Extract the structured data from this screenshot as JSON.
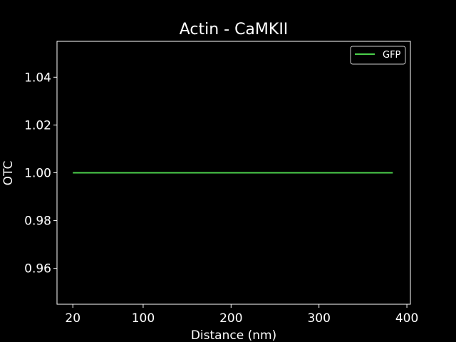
{
  "chart_data": {
    "type": "line",
    "title": "Actin - CaMKII",
    "xlabel": "Distance (nm)",
    "ylabel": "OTC",
    "xlim": [
      2,
      404
    ],
    "ylim": [
      0.945,
      1.055
    ],
    "xticks": [
      20,
      100,
      200,
      300,
      400
    ],
    "yticks": [
      0.96,
      0.98,
      1.0,
      1.02,
      1.04
    ],
    "xtick_labels": [
      "20",
      "100",
      "200",
      "300",
      "400"
    ],
    "ytick_labels": [
      "0.96",
      "0.98",
      "1.00",
      "1.02",
      "1.04"
    ],
    "grid": false,
    "legend_position": "upper-right",
    "colors": {
      "background": "#000000",
      "axes": "#ffffff",
      "text": "#ffffff"
    },
    "series": [
      {
        "name": "GFP",
        "color": "#4bd04b",
        "x": [
          20,
          384
        ],
        "y": [
          1.0,
          1.0
        ]
      }
    ]
  }
}
